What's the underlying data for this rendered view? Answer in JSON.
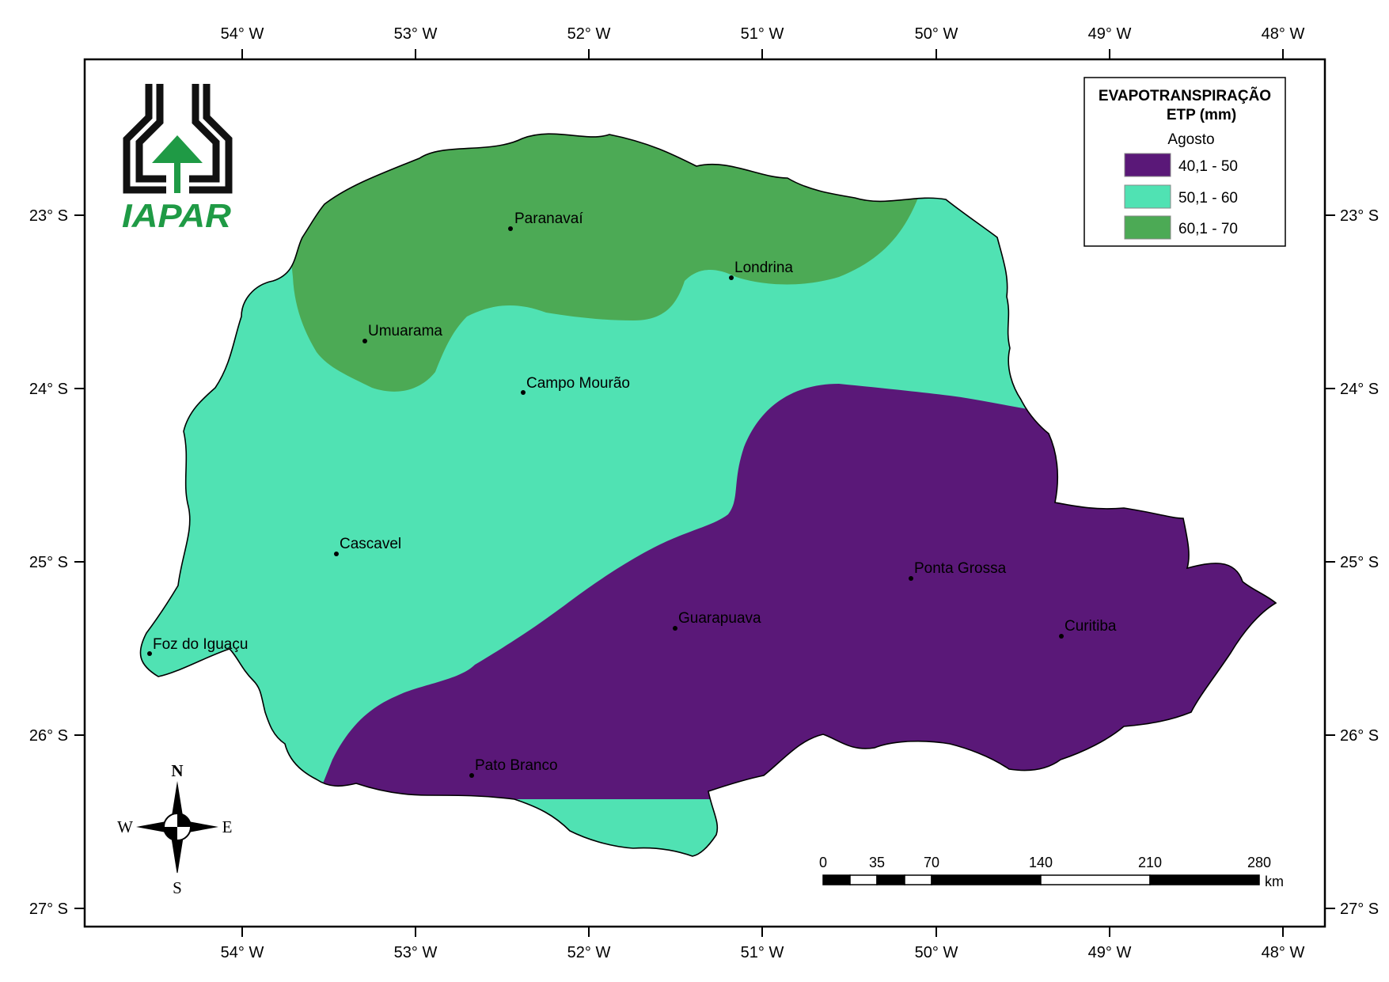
{
  "map": {
    "lon_ticks": [
      "54° W",
      "53° W",
      "52° W",
      "51° W",
      "50° W",
      "49° W",
      "48° W"
    ],
    "lat_ticks": [
      "23° S",
      "24° S",
      "25° S",
      "26° S",
      "27° S"
    ]
  },
  "legend": {
    "title_line1": "EVAPOTRANSPIRAÇÃO",
    "title_line2": "ETP (mm)",
    "subtitle": "Agosto",
    "items": [
      {
        "label": "40,1 - 50",
        "color": "#5a1878"
      },
      {
        "label": "50,1 - 60",
        "color": "#50e2b3"
      },
      {
        "label": "60,1 - 70",
        "color": "#4caa55"
      }
    ]
  },
  "cities": [
    "Paranavaí",
    "Londrina",
    "Umuarama",
    "Campo Mourão",
    "Cascavel",
    "Ponta Grossa",
    "Guarapuava",
    "Curitiba",
    "Foz do Iguaçu",
    "Pato Branco"
  ],
  "scale_bar": {
    "labels": [
      "0",
      "35",
      "70",
      "140",
      "210",
      "280"
    ],
    "unit": "km"
  },
  "compass": {
    "n": "N",
    "s": "S",
    "e": "E",
    "w": "W"
  },
  "logo": {
    "text": "IAPAR",
    "color": "#1f9a45"
  }
}
